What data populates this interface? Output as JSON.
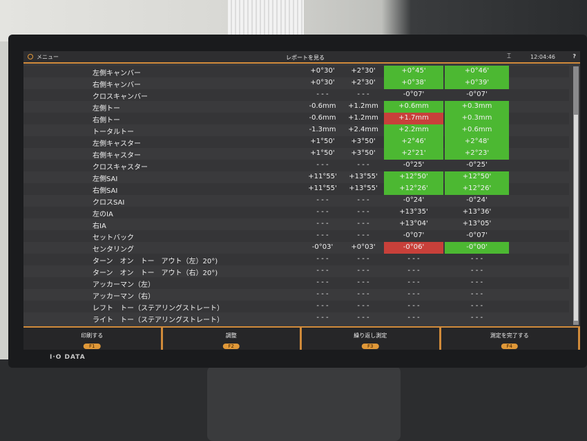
{
  "header": {
    "menu_label": "メニュー",
    "title": "レポートを見る",
    "time": "12:04:46",
    "help": "?"
  },
  "monitor_brand": "I·O DATA",
  "colors": {
    "ok": "#4cb832",
    "ng": "#c8403a",
    "accent": "#d08a3a"
  },
  "rows": [
    {
      "label": "左側キャンバー",
      "min": "+0°30'",
      "max": "+2°30'",
      "before": "+0°45'",
      "after": "+0°46'",
      "before_status": "ok",
      "after_status": "ok"
    },
    {
      "label": "右側キャンバー",
      "min": "+0°30'",
      "max": "+2°30'",
      "before": "+0°38'",
      "after": "+0°39'",
      "before_status": "ok",
      "after_status": "ok"
    },
    {
      "label": "クロスキャンバー",
      "min": "- - -",
      "max": "- - -",
      "before": "-0°07'",
      "after": "-0°07'",
      "before_status": "",
      "after_status": ""
    },
    {
      "label": "左側トー",
      "min": "-0.6mm",
      "max": "+1.2mm",
      "before": "+0.6mm",
      "after": "+0.3mm",
      "before_status": "ok",
      "after_status": "ok"
    },
    {
      "label": "右側トー",
      "min": "-0.6mm",
      "max": "+1.2mm",
      "before": "+1.7mm",
      "after": "+0.3mm",
      "before_status": "ng",
      "after_status": "ok"
    },
    {
      "label": "トータルトー",
      "min": "-1.3mm",
      "max": "+2.4mm",
      "before": "+2.2mm",
      "after": "+0.6mm",
      "before_status": "ok",
      "after_status": "ok"
    },
    {
      "label": "左側キャスター",
      "min": "+1°50'",
      "max": "+3°50'",
      "before": "+2°46'",
      "after": "+2°48'",
      "before_status": "ok",
      "after_status": "ok"
    },
    {
      "label": "右側キャスター",
      "min": "+1°50'",
      "max": "+3°50'",
      "before": "+2°21'",
      "after": "+2°23'",
      "before_status": "ok",
      "after_status": "ok"
    },
    {
      "label": "クロスキャスター",
      "min": "- - -",
      "max": "- - -",
      "before": "-0°25'",
      "after": "-0°25'",
      "before_status": "",
      "after_status": ""
    },
    {
      "label": "左側SAI",
      "min": "+11°55'",
      "max": "+13°55'",
      "before": "+12°50'",
      "after": "+12°50'",
      "before_status": "ok",
      "after_status": "ok"
    },
    {
      "label": "右側SAI",
      "min": "+11°55'",
      "max": "+13°55'",
      "before": "+12°26'",
      "after": "+12°26'",
      "before_status": "ok",
      "after_status": "ok"
    },
    {
      "label": "クロスSAI",
      "min": "- - -",
      "max": "- - -",
      "before": "-0°24'",
      "after": "-0°24'",
      "before_status": "",
      "after_status": ""
    },
    {
      "label": "左のIA",
      "min": "- - -",
      "max": "- - -",
      "before": "+13°35'",
      "after": "+13°36'",
      "before_status": "",
      "after_status": ""
    },
    {
      "label": "右IA",
      "min": "- - -",
      "max": "- - -",
      "before": "+13°04'",
      "after": "+13°05'",
      "before_status": "",
      "after_status": ""
    },
    {
      "label": "セットバック",
      "min": "- - -",
      "max": "- - -",
      "before": "-0°07'",
      "after": "-0°07'",
      "before_status": "",
      "after_status": ""
    },
    {
      "label": "センタリング",
      "min": "-0°03'",
      "max": "+0°03'",
      "before": "-0°06'",
      "after": "-0°00'",
      "before_status": "ng",
      "after_status": "ok"
    },
    {
      "label": "ターン　オン　トー　アウト（左）20°)",
      "min": "- - -",
      "max": "- - -",
      "before": "- - -",
      "after": "- - -",
      "before_status": "",
      "after_status": ""
    },
    {
      "label": "ターン　オン　トー　アウト（右）20°)",
      "min": "- - -",
      "max": "- - -",
      "before": "- - -",
      "after": "- - -",
      "before_status": "",
      "after_status": ""
    },
    {
      "label": "アッカーマン（左）",
      "min": "- - -",
      "max": "- - -",
      "before": "- - -",
      "after": "- - -",
      "before_status": "",
      "after_status": ""
    },
    {
      "label": "アッカーマン（右）",
      "min": "- - -",
      "max": "- - -",
      "before": "- - -",
      "after": "- - -",
      "before_status": "",
      "after_status": ""
    },
    {
      "label": "レフト　トー（ステアリングストレート）",
      "min": "- - -",
      "max": "- - -",
      "before": "- - -",
      "after": "- - -",
      "before_status": "",
      "after_status": ""
    },
    {
      "label": "ライト　トー（ステアリングストレート）",
      "min": "- - -",
      "max": "- - -",
      "before": "- - -",
      "after": "- - -",
      "before_status": "",
      "after_status": ""
    }
  ],
  "footer": [
    {
      "label": "印刷する",
      "key": "F1"
    },
    {
      "label": "調整",
      "key": "F2"
    },
    {
      "label": "繰り返し測定",
      "key": "F3"
    },
    {
      "label": "測定を完了する",
      "key": "F4"
    }
  ]
}
